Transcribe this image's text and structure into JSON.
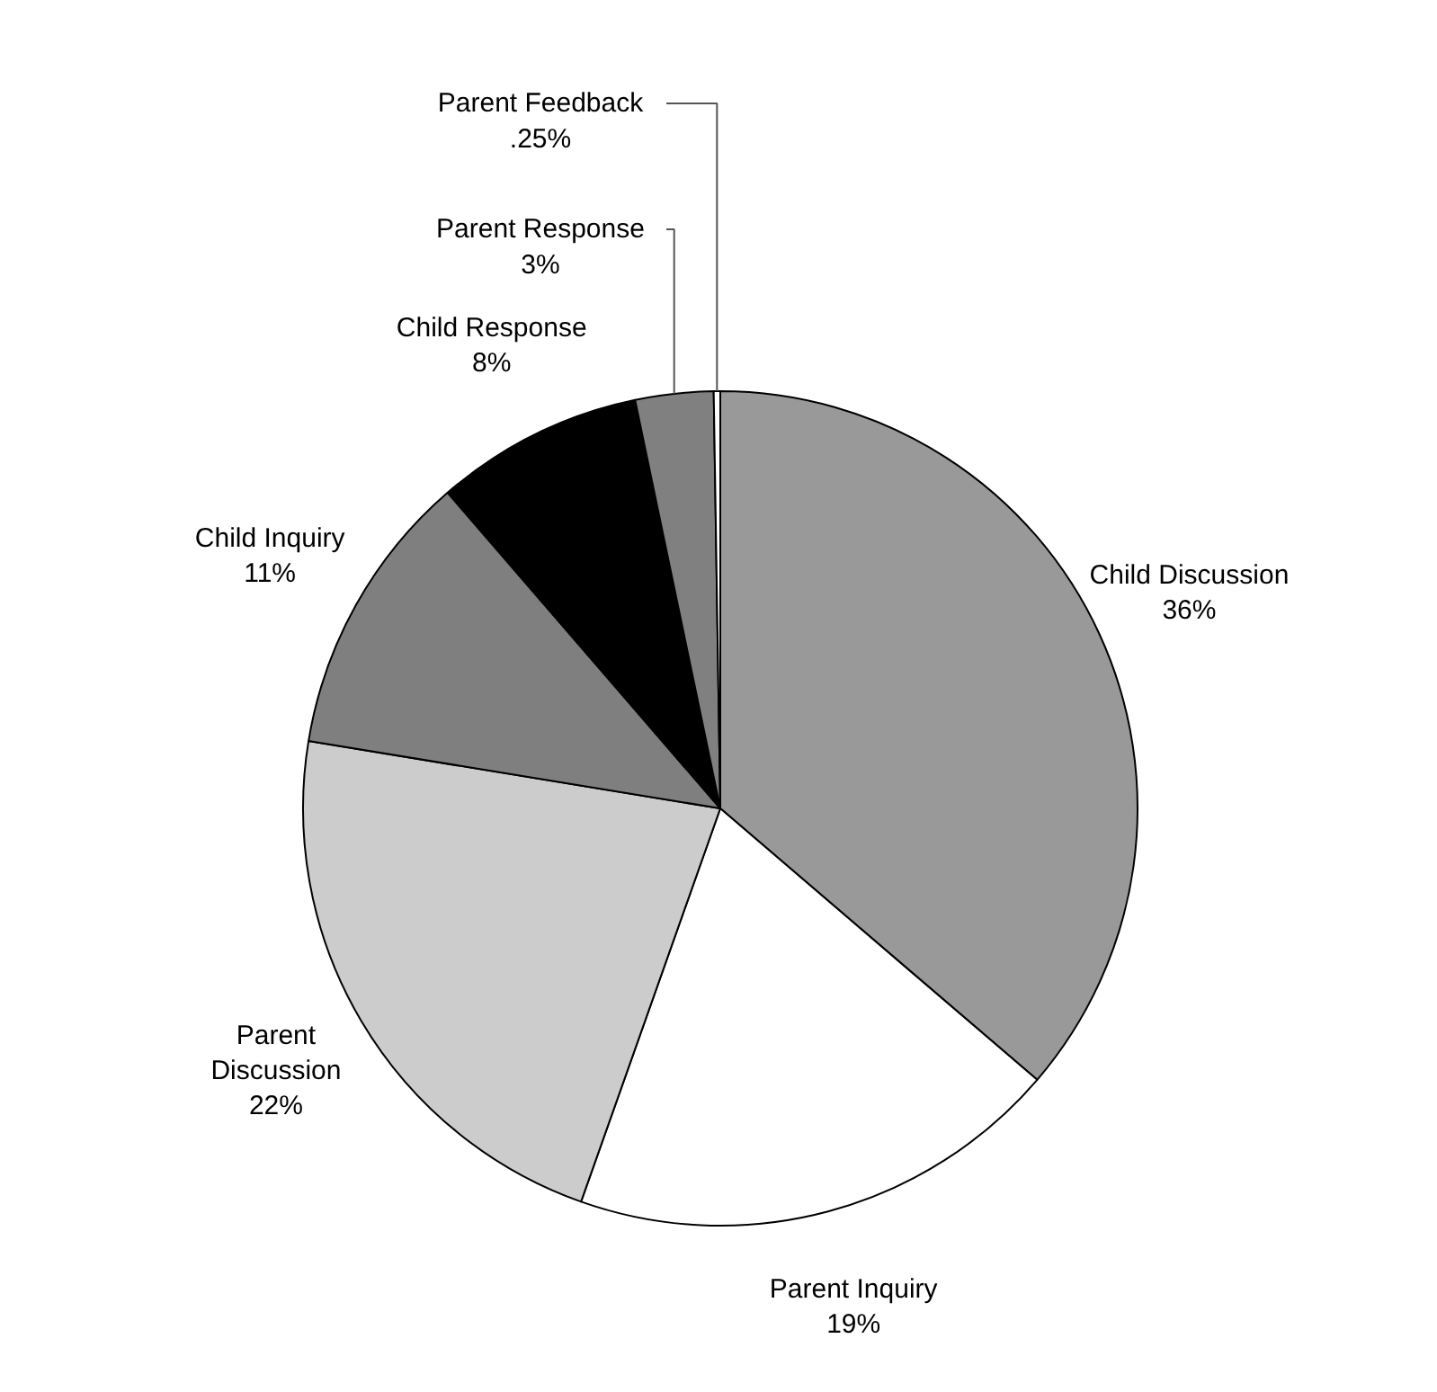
{
  "chart_data": {
    "type": "pie",
    "categories": [
      "Child Discussion",
      "Parent Inquiry",
      "Parent Discussion",
      "Child Inquiry",
      "Child Response",
      "Parent Response",
      "Parent Feedback"
    ],
    "values": [
      36,
      19,
      22,
      11,
      8,
      3,
      0.25
    ],
    "value_labels": [
      "36%",
      "19%",
      "22%",
      "11%",
      "8%",
      "3%",
      ".25%"
    ],
    "colors": [
      "#999999",
      "#ffffff",
      "#cccccc",
      "#7f7f7f",
      "#000000",
      "#808080",
      "#ffffff"
    ],
    "legend": false
  }
}
